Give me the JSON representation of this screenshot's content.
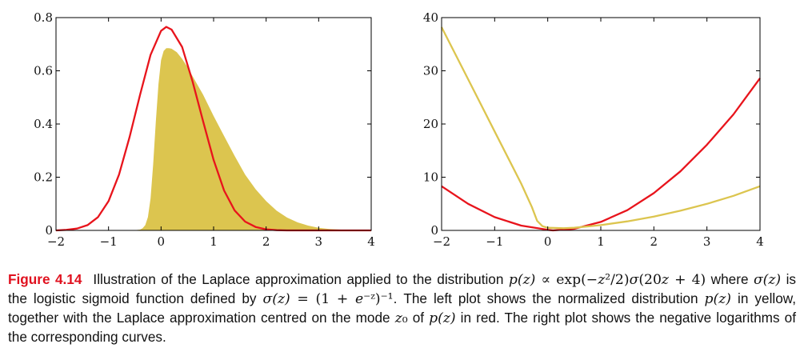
{
  "colors": {
    "red": "#e8141c",
    "yellow": "#dcc54f",
    "axis": "#000000"
  },
  "chart_data": [
    {
      "type": "area",
      "panel": "left",
      "xlim": [
        -2,
        4
      ],
      "ylim": [
        0,
        0.8
      ],
      "x_ticks": [
        "−2",
        "−1",
        "0",
        "1",
        "2",
        "3",
        "4"
      ],
      "y_ticks": [
        "0",
        "0.2",
        "0.4",
        "0.6",
        "0.8"
      ],
      "series": [
        {
          "style": "filled-area",
          "color": "yellow",
          "x": [
            -2.0,
            -0.6,
            -0.5,
            -0.4,
            -0.35,
            -0.3,
            -0.25,
            -0.2,
            -0.15,
            -0.1,
            -0.05,
            0.0,
            0.05,
            0.1,
            0.15,
            0.2,
            0.3,
            0.4,
            0.5,
            0.6,
            0.8,
            1.0,
            1.2,
            1.4,
            1.6,
            1.8,
            2.0,
            2.2,
            2.4,
            2.6,
            2.8,
            3.0,
            3.2,
            3.5,
            4.0
          ],
          "y": [
            0.0,
            0.0,
            0.001,
            0.003,
            0.008,
            0.02,
            0.05,
            0.12,
            0.25,
            0.41,
            0.55,
            0.64,
            0.675,
            0.685,
            0.685,
            0.683,
            0.67,
            0.645,
            0.615,
            0.58,
            0.51,
            0.43,
            0.355,
            0.28,
            0.21,
            0.155,
            0.11,
            0.074,
            0.048,
            0.03,
            0.018,
            0.01,
            0.005,
            0.002,
            0.0
          ]
        },
        {
          "style": "line",
          "color": "red",
          "x": [
            -2.0,
            -1.8,
            -1.6,
            -1.4,
            -1.2,
            -1.0,
            -0.8,
            -0.6,
            -0.4,
            -0.2,
            0.0,
            0.1,
            0.2,
            0.4,
            0.6,
            0.8,
            1.0,
            1.2,
            1.4,
            1.6,
            1.8,
            2.0,
            2.2,
            2.4,
            2.6,
            3.0,
            3.5,
            4.0
          ],
          "y": [
            0.0,
            0.002,
            0.007,
            0.02,
            0.05,
            0.11,
            0.21,
            0.35,
            0.51,
            0.66,
            0.75,
            0.765,
            0.755,
            0.69,
            0.56,
            0.41,
            0.265,
            0.15,
            0.075,
            0.033,
            0.013,
            0.004,
            0.001,
            0.0,
            0.0,
            0.0,
            0.0,
            0.0
          ]
        }
      ]
    },
    {
      "type": "line",
      "panel": "right",
      "xlim": [
        -2,
        4
      ],
      "ylim": [
        0,
        40
      ],
      "x_ticks": [
        "−2",
        "−1",
        "0",
        "1",
        "2",
        "3",
        "4"
      ],
      "y_ticks": [
        "0",
        "10",
        "20",
        "30",
        "40"
      ],
      "series": [
        {
          "style": "line",
          "color": "red",
          "x": [
            -2.0,
            -1.5,
            -1.0,
            -0.5,
            0.0,
            0.1,
            0.5,
            1.0,
            1.5,
            2.0,
            2.5,
            3.0,
            3.5,
            4.0
          ],
          "y": [
            8.3,
            5.0,
            2.5,
            0.9,
            0.1,
            0.0,
            0.3,
            1.6,
            3.8,
            7.0,
            11.1,
            16.1,
            21.8,
            28.6
          ]
        },
        {
          "style": "line",
          "color": "yellow",
          "x": [
            -2.0,
            -1.5,
            -1.0,
            -0.5,
            -0.3,
            -0.2,
            -0.1,
            0.0,
            0.3,
            0.5,
            1.0,
            1.5,
            2.0,
            2.5,
            3.0,
            3.5,
            4.0
          ],
          "y": [
            38.2,
            28.4,
            18.6,
            8.8,
            4.4,
            1.8,
            0.8,
            0.5,
            0.4,
            0.5,
            1.0,
            1.7,
            2.6,
            3.7,
            5.0,
            6.5,
            8.3
          ]
        }
      ]
    }
  ],
  "caption": {
    "label": "Figure 4.14",
    "parts": [
      {
        "t": "text",
        "v": "Illustration of the Laplace approximation applied to the distribution "
      },
      {
        "t": "math",
        "v": "p(z)"
      },
      {
        "t": "mu",
        "v": " ∝ exp(−"
      },
      {
        "t": "math",
        "v": "z"
      },
      {
        "t": "mu",
        "v": "²/2)"
      },
      {
        "t": "math",
        "v": "σ"
      },
      {
        "t": "mu",
        "v": "(20"
      },
      {
        "t": "math",
        "v": "z"
      },
      {
        "t": "mu",
        "v": " + 4)"
      },
      {
        "t": "text",
        "v": " where "
      },
      {
        "t": "math",
        "v": "σ(z)"
      },
      {
        "t": "text",
        "v": " is the logistic sigmoid function defined by "
      },
      {
        "t": "math",
        "v": "σ(z)"
      },
      {
        "t": "mu",
        "v": " = (1 + "
      },
      {
        "t": "math",
        "v": "e"
      },
      {
        "t": "mu",
        "v": "⁻ᶻ)⁻¹"
      },
      {
        "t": "text",
        "v": ". The left plot shows the normalized distribution "
      },
      {
        "t": "math",
        "v": "p(z)"
      },
      {
        "t": "text",
        "v": " in yellow, together with the Laplace approximation centred on the mode "
      },
      {
        "t": "math",
        "v": "z"
      },
      {
        "t": "mu",
        "v": "₀"
      },
      {
        "t": "text",
        "v": " of "
      },
      {
        "t": "math",
        "v": "p(z)"
      },
      {
        "t": "text",
        "v": " in red. The right plot shows the negative logarithms of the corresponding curves."
      }
    ]
  }
}
